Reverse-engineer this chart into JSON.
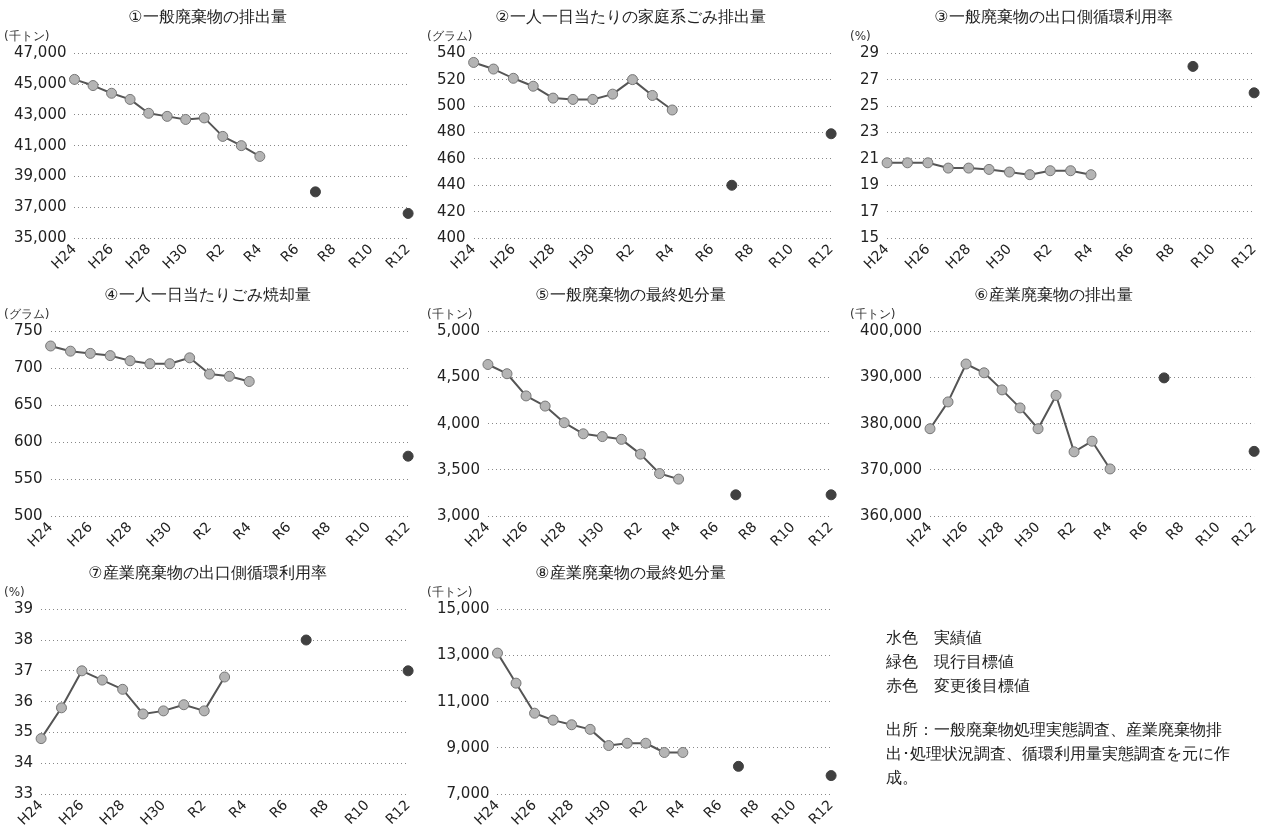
{
  "chart_data": [
    {
      "type": "line",
      "title": "①一般廃棄物の排出量",
      "ylabel": "(千トン)",
      "categories": [
        "H24",
        null,
        "H26",
        null,
        "H28",
        null,
        "H30",
        null,
        "R2",
        null,
        "R4",
        null,
        "R6",
        null,
        "R8",
        null,
        "R10",
        null,
        "R12"
      ],
      "ylim": [
        35000,
        47000
      ],
      "yticks": [
        {
          "value": 35000,
          "label": "35,000"
        },
        {
          "value": 37000,
          "label": "37,000"
        },
        {
          "value": 39000,
          "label": "39,000"
        },
        {
          "value": 41000,
          "label": "41,000"
        },
        {
          "value": 43000,
          "label": "43,000"
        },
        {
          "value": 45000,
          "label": "45,000"
        },
        {
          "value": 47000,
          "label": "47,000"
        }
      ],
      "grid": "y",
      "marker": "circle",
      "series": [
        {
          "type": "line",
          "color": "#b4b4b4",
          "values": [
            45300,
            44900,
            44400,
            44000,
            43100,
            42900,
            42700,
            42800,
            41600,
            41000,
            40300,
            null,
            null,
            null,
            null,
            null,
            null,
            null,
            null
          ]
        },
        {
          "type": "scatter",
          "color": "#404040",
          "values": [
            null,
            null,
            null,
            null,
            null,
            null,
            null,
            null,
            null,
            null,
            null,
            null,
            null,
            38000,
            null,
            null,
            null,
            null,
            36600
          ]
        }
      ]
    },
    {
      "type": "line",
      "title": "②一人一日当たりの家庭系ごみ排出量",
      "ylabel": "(グラム)",
      "categories": [
        "H24",
        null,
        "H26",
        null,
        "H28",
        null,
        "H30",
        null,
        "R2",
        null,
        "R4",
        null,
        "R6",
        null,
        "R8",
        null,
        "R10",
        null,
        "R12"
      ],
      "ylim": [
        400,
        540
      ],
      "yticks": [
        400,
        420,
        440,
        460,
        480,
        500,
        520,
        540
      ],
      "grid": "y",
      "marker": "circle",
      "series": [
        {
          "type": "line",
          "color": "#b4b4b4",
          "values": [
            533,
            528,
            521,
            515,
            506,
            505,
            505,
            509,
            520,
            508,
            497,
            null,
            null,
            null,
            null,
            null,
            null,
            null,
            null
          ]
        },
        {
          "type": "scatter",
          "color": "#404040",
          "values": [
            null,
            null,
            null,
            null,
            null,
            null,
            null,
            null,
            null,
            null,
            null,
            null,
            null,
            440,
            null,
            null,
            null,
            null,
            479
          ]
        }
      ]
    },
    {
      "type": "line",
      "title": "③一般廃棄物の出口側循環利用率",
      "ylabel": "(%)",
      "categories": [
        "H24",
        null,
        "H26",
        null,
        "H28",
        null,
        "H30",
        null,
        "R2",
        null,
        "R4",
        null,
        "R6",
        null,
        "R8",
        null,
        "R10",
        null,
        "R12"
      ],
      "ylim": [
        15,
        29
      ],
      "yticks": [
        15,
        17,
        19,
        21,
        23,
        25,
        27,
        29
      ],
      "grid": "y",
      "marker": "circle",
      "series": [
        {
          "type": "line",
          "color": "#b4b4b4",
          "values": [
            20.7,
            20.7,
            20.7,
            20.3,
            20.3,
            20.2,
            20.0,
            19.8,
            20.1,
            20.1,
            19.8,
            null,
            null,
            null,
            null,
            null,
            null,
            null,
            null
          ]
        },
        {
          "type": "scatter",
          "color": "#404040",
          "values": [
            null,
            null,
            null,
            null,
            null,
            null,
            null,
            null,
            null,
            null,
            null,
            null,
            null,
            null,
            null,
            28,
            null,
            null,
            26
          ]
        }
      ]
    },
    {
      "type": "line",
      "title": "④一人一日当たりごみ焼却量",
      "ylabel": "(グラム)",
      "categories": [
        "H24",
        null,
        "H26",
        null,
        "H28",
        null,
        "H30",
        null,
        "R2",
        null,
        "R4",
        null,
        "R6",
        null,
        "R8",
        null,
        "R10",
        null,
        "R12"
      ],
      "ylim": [
        500,
        750
      ],
      "yticks": [
        500,
        550,
        600,
        650,
        700,
        750
      ],
      "grid": "y",
      "marker": "circle",
      "series": [
        {
          "type": "line",
          "color": "#b4b4b4",
          "values": [
            730,
            723,
            720,
            717,
            710,
            706,
            706,
            714,
            692,
            689,
            682,
            null,
            null,
            null,
            null,
            null,
            null,
            null,
            null
          ]
        },
        {
          "type": "scatter",
          "color": "#404040",
          "values": [
            null,
            null,
            null,
            null,
            null,
            null,
            null,
            null,
            null,
            null,
            null,
            null,
            null,
            null,
            null,
            null,
            null,
            null,
            581
          ]
        }
      ]
    },
    {
      "type": "line",
      "title": "⑤一般廃棄物の最終処分量",
      "ylabel": "(千トン)",
      "categories": [
        "H24",
        null,
        "H26",
        null,
        "H28",
        null,
        "H30",
        null,
        "R2",
        null,
        "R4",
        null,
        "R6",
        null,
        "R8",
        null,
        "R10",
        null,
        "R12"
      ],
      "ylim": [
        3000,
        5000
      ],
      "yticks": [
        {
          "value": 3000,
          "label": "3,000"
        },
        {
          "value": 3500,
          "label": "3,500"
        },
        {
          "value": 4000,
          "label": "4,000"
        },
        {
          "value": 4500,
          "label": "4,500"
        },
        {
          "value": 5000,
          "label": "5,000"
        }
      ],
      "grid": "y",
      "marker": "circle",
      "series": [
        {
          "type": "line",
          "color": "#b4b4b4",
          "values": [
            4640,
            4540,
            4300,
            4190,
            4010,
            3890,
            3860,
            3830,
            3670,
            3460,
            3400,
            null,
            null,
            null,
            null,
            null,
            null,
            null,
            null
          ]
        },
        {
          "type": "scatter",
          "color": "#404040",
          "values": [
            null,
            null,
            null,
            null,
            null,
            null,
            null,
            null,
            null,
            null,
            null,
            null,
            null,
            3230,
            null,
            null,
            null,
            null,
            3230
          ]
        }
      ]
    },
    {
      "type": "line",
      "title": "⑥産業廃棄物の排出量",
      "ylabel": "(千トン)",
      "categories": [
        "H24",
        null,
        "H26",
        null,
        "H28",
        null,
        "H30",
        null,
        "R2",
        null,
        "R4",
        null,
        "R6",
        null,
        "R8",
        null,
        "R10",
        null,
        "R12"
      ],
      "ylim": [
        360000,
        400000
      ],
      "yticks": [
        {
          "value": 360000,
          "label": "360,000"
        },
        {
          "value": 370000,
          "label": "370,000"
        },
        {
          "value": 380000,
          "label": "380,000"
        },
        {
          "value": 390000,
          "label": "390,000"
        },
        {
          "value": 400000,
          "label": "400,000"
        }
      ],
      "grid": "y",
      "marker": "circle",
      "series": [
        {
          "type": "line",
          "color": "#b4b4b4",
          "values": [
            378900,
            384700,
            392900,
            391000,
            387300,
            383400,
            378900,
            386100,
            373900,
            376200,
            370200,
            null,
            null,
            null,
            null,
            null,
            null,
            null,
            null
          ]
        },
        {
          "type": "scatter",
          "color": "#404040",
          "values": [
            null,
            null,
            null,
            null,
            null,
            null,
            null,
            null,
            null,
            null,
            null,
            null,
            null,
            389900,
            null,
            null,
            null,
            null,
            374000
          ]
        }
      ]
    },
    {
      "type": "line",
      "title": "⑦産業廃棄物の出口側循環利用率",
      "ylabel": "(%)",
      "categories": [
        "H24",
        null,
        "H26",
        null,
        "H28",
        null,
        "H30",
        null,
        "R2",
        null,
        "R4",
        null,
        "R6",
        null,
        "R8",
        null,
        "R10",
        null,
        "R12"
      ],
      "ylim": [
        33,
        39
      ],
      "yticks": [
        33,
        34,
        35,
        36,
        37,
        38,
        39
      ],
      "grid": "y",
      "marker": "circle",
      "series": [
        {
          "type": "line",
          "color": "#b4b4b4",
          "values": [
            34.8,
            35.8,
            37.0,
            36.7,
            36.4,
            35.6,
            35.7,
            35.9,
            35.7,
            36.8,
            null,
            null,
            null,
            null,
            null,
            null,
            null,
            null,
            null
          ]
        },
        {
          "type": "scatter",
          "color": "#404040",
          "values": [
            null,
            null,
            null,
            null,
            null,
            null,
            null,
            null,
            null,
            null,
            null,
            null,
            null,
            38,
            null,
            null,
            null,
            null,
            37
          ]
        }
      ]
    },
    {
      "type": "line",
      "title": "⑧産業廃棄物の最終処分量",
      "ylabel": "(千トン)",
      "categories": [
        "H24",
        null,
        "H26",
        null,
        "H28",
        null,
        "H30",
        null,
        "R2",
        null,
        "R4",
        null,
        "R6",
        null,
        "R8",
        null,
        "R10",
        null,
        "R12"
      ],
      "ylim": [
        7000,
        15000
      ],
      "yticks": [
        {
          "value": 7000,
          "label": "7,000"
        },
        {
          "value": 9000,
          "label": "9,000"
        },
        {
          "value": 11000,
          "label": "11,000"
        },
        {
          "value": 13000,
          "label": "13,000"
        },
        {
          "value": 15000,
          "label": "15,000"
        }
      ],
      "grid": "y",
      "marker": "circle",
      "series": [
        {
          "type": "line",
          "color": "#b4b4b4",
          "values": [
            13100,
            11800,
            10500,
            10200,
            10000,
            9800,
            9100,
            9200,
            9200,
            8800,
            8800,
            null,
            null,
            null,
            null,
            null,
            null,
            null,
            null
          ]
        },
        {
          "type": "scatter",
          "color": "#404040",
          "values": [
            null,
            null,
            null,
            null,
            null,
            null,
            null,
            null,
            null,
            null,
            null,
            null,
            null,
            8200,
            null,
            null,
            null,
            null,
            7800
          ]
        }
      ]
    },
    {
      "type": "other",
      "annotations": [
        "水色　実績値",
        "緑色　現行目標値",
        "赤色　変更後目標値",
        "出所：一般廃棄物処理実態調査、産業廃棄物排出･処理状況調査、循環利用量実態調査を元に作成。"
      ]
    }
  ]
}
